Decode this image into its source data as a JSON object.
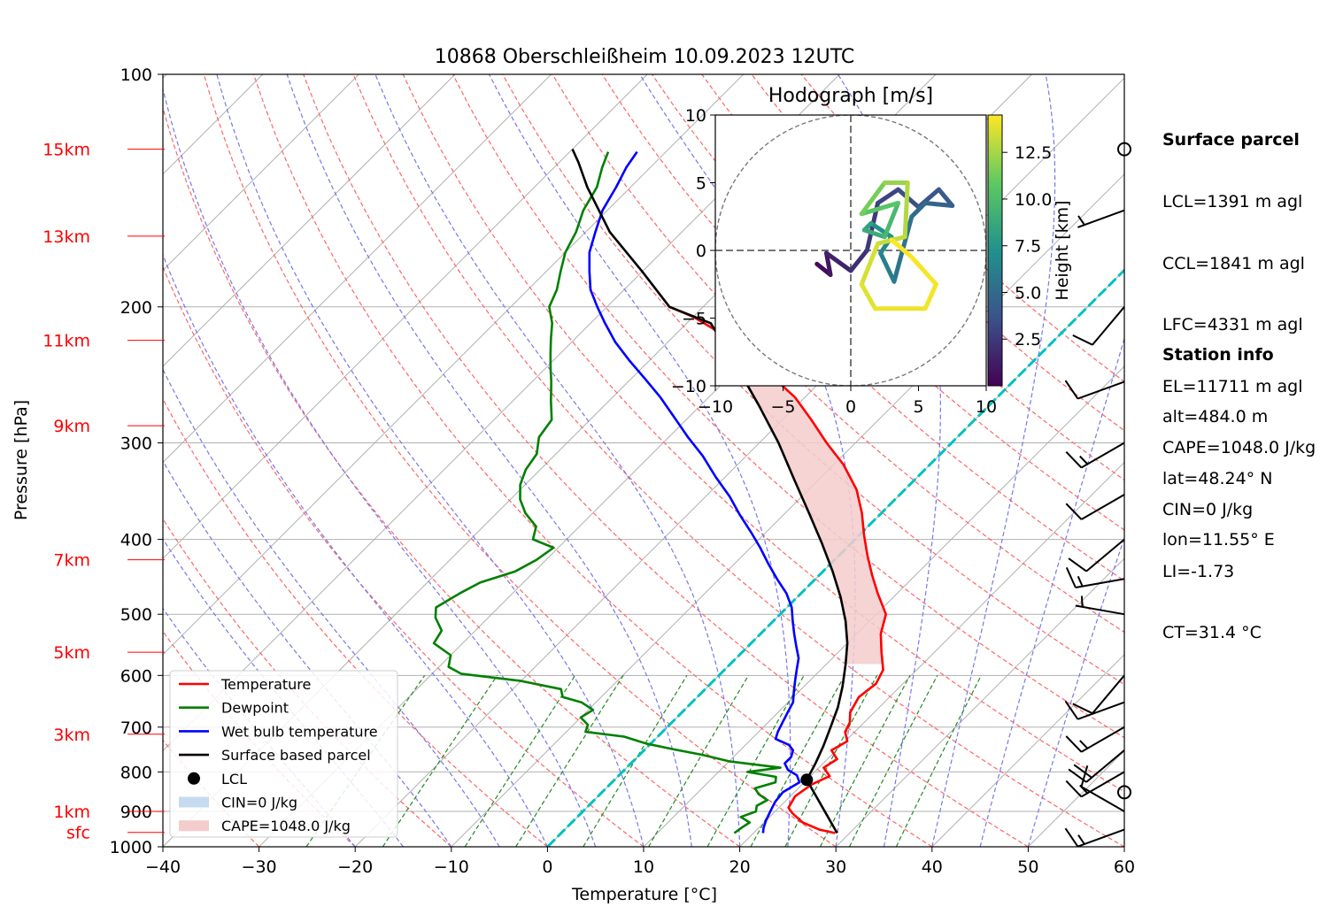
{
  "chart_data": {
    "type": "skew-t log-p sounding",
    "title": "10868 Oberschleißheim 10.09.2023 12UTC",
    "xlabel": "Temperature [°C]",
    "ylabel": "Pressure [hPa]",
    "xlim": [
      -40,
      60
    ],
    "ylim": [
      1000,
      100
    ],
    "y_scale": "log",
    "grid": true,
    "x_ticks": [
      "−40",
      "−30",
      "−20",
      "−10",
      "0",
      "10",
      "20",
      "30",
      "40",
      "50",
      "60"
    ],
    "y_ticks": [
      "100",
      "200",
      "300",
      "400",
      "500",
      "600",
      "700",
      "800",
      "900",
      "1000"
    ],
    "height_labels": [
      {
        "label": "15km",
        "p": 125
      },
      {
        "label": "13km",
        "p": 162
      },
      {
        "label": "11km",
        "p": 221
      },
      {
        "label": "9km",
        "p": 285
      },
      {
        "label": "7km",
        "p": 425
      },
      {
        "label": "5km",
        "p": 560
      },
      {
        "label": "3km",
        "p": 715
      },
      {
        "label": "1km",
        "p": 900
      },
      {
        "label": "sfc",
        "p": 958
      }
    ],
    "legend": {
      "placement": "lower-left",
      "entries": [
        {
          "label": "Temperature",
          "color": "#ff0000",
          "kind": "line"
        },
        {
          "label": "Dewpoint",
          "color": "#008000",
          "kind": "line"
        },
        {
          "label": "Wet bulb temperature",
          "color": "#0000ff",
          "kind": "line"
        },
        {
          "label": "Surface based parcel",
          "color": "#000000",
          "kind": "line"
        },
        {
          "label": "LCL",
          "color": "#000000",
          "kind": "dot"
        },
        {
          "label": "CIN=0 J/kg",
          "color": "#c6dbef",
          "kind": "patch"
        },
        {
          "label": "CAPE=1048.0 J/kg",
          "color": "#f4cccc",
          "kind": "patch"
        }
      ]
    },
    "series": [
      {
        "name": "Temperature",
        "color": "#ff0000",
        "points": [
          [
            28.5,
            960
          ],
          [
            26.5,
            950
          ],
          [
            24.0,
            930
          ],
          [
            22.0,
            905
          ],
          [
            21.0,
            890
          ],
          [
            20.5,
            860
          ],
          [
            21.0,
            830
          ],
          [
            22.0,
            810
          ],
          [
            20.5,
            790
          ],
          [
            21.0,
            770
          ],
          [
            19.5,
            750
          ],
          [
            20.2,
            730
          ],
          [
            19.0,
            710
          ],
          [
            18.5,
            690
          ],
          [
            17.5,
            670
          ],
          [
            16.8,
            640
          ],
          [
            17.2,
            615
          ],
          [
            16.5,
            590
          ],
          [
            14.5,
            560
          ],
          [
            12.5,
            530
          ],
          [
            11.0,
            500
          ],
          [
            8.0,
            470
          ],
          [
            5.5,
            445
          ],
          [
            3.0,
            420
          ],
          [
            0.5,
            395
          ],
          [
            -2.0,
            370
          ],
          [
            -5.0,
            345
          ],
          [
            -9.0,
            320
          ],
          [
            -13.0,
            300
          ],
          [
            -17.0,
            280
          ],
          [
            -21.0,
            262
          ],
          [
            -25.0,
            248
          ],
          [
            -29.0,
            235
          ],
          [
            -32.5,
            225
          ],
          [
            -36.0,
            215
          ],
          [
            -40.0,
            206
          ],
          [
            -43.5,
            200
          ]
        ]
      },
      {
        "name": "Dewpoint",
        "color": "#008000",
        "points": [
          [
            18.0,
            960
          ],
          [
            18.2,
            945
          ],
          [
            18.5,
            930
          ],
          [
            17.0,
            915
          ],
          [
            18.0,
            900
          ],
          [
            17.5,
            885
          ],
          [
            18.0,
            870
          ],
          [
            16.5,
            855
          ],
          [
            15.5,
            840
          ],
          [
            17.0,
            825
          ],
          [
            16.5,
            812
          ],
          [
            13.0,
            800
          ],
          [
            16.0,
            790
          ],
          [
            10.0,
            775
          ],
          [
            6.5,
            760
          ],
          [
            3.0,
            748
          ],
          [
            -0.5,
            735
          ],
          [
            -3.5,
            720
          ],
          [
            -8.0,
            710
          ],
          [
            -8.5,
            695
          ],
          [
            -10.0,
            680
          ],
          [
            -9.5,
            665
          ],
          [
            -11.5,
            650
          ],
          [
            -14.0,
            640
          ],
          [
            -15.0,
            625
          ],
          [
            -20.0,
            610
          ],
          [
            -27.0,
            597
          ],
          [
            -29.0,
            585
          ],
          [
            -30.0,
            565
          ],
          [
            -33.0,
            545
          ],
          [
            -33.5,
            525
          ],
          [
            -35.5,
            505
          ],
          [
            -36.5,
            490
          ],
          [
            -35.5,
            470
          ],
          [
            -34.5,
            455
          ],
          [
            -32.0,
            440
          ],
          [
            -31.0,
            425
          ],
          [
            -30.5,
            410
          ],
          [
            -33.5,
            400
          ],
          [
            -34.5,
            385
          ],
          [
            -37.0,
            370
          ],
          [
            -39.0,
            355
          ],
          [
            -40.5,
            340
          ],
          [
            -41.5,
            325
          ],
          [
            -42.0,
            310
          ],
          [
            -43.5,
            295
          ],
          [
            -44.0,
            280
          ],
          [
            -46.0,
            265
          ],
          [
            -48.0,
            250
          ],
          [
            -49.5,
            240
          ],
          [
            -51.0,
            230
          ],
          [
            -52.5,
            220
          ],
          [
            -54.0,
            210
          ],
          [
            -56.0,
            200
          ],
          [
            -57.0,
            190
          ],
          [
            -58.5,
            180
          ],
          [
            -60.0,
            170
          ],
          [
            -61.0,
            160
          ],
          [
            -62.5,
            150
          ],
          [
            -63.5,
            140
          ],
          [
            -65.0,
            132
          ],
          [
            -66.0,
            126
          ]
        ]
      },
      {
        "name": "Wet bulb temperature",
        "color": "#0000ff",
        "points": [
          [
            21.0,
            960
          ],
          [
            20.5,
            945
          ],
          [
            20.0,
            925
          ],
          [
            19.5,
            900
          ],
          [
            19.0,
            875
          ],
          [
            18.8,
            850
          ],
          [
            19.5,
            825
          ],
          [
            18.5,
            808
          ],
          [
            17.0,
            795
          ],
          [
            16.0,
            780
          ],
          [
            16.0,
            765
          ],
          [
            15.5,
            750
          ],
          [
            14.5,
            738
          ],
          [
            12.5,
            725
          ],
          [
            12.0,
            710
          ],
          [
            11.5,
            690
          ],
          [
            11.0,
            670
          ],
          [
            10.5,
            650
          ],
          [
            9.5,
            630
          ],
          [
            8.5,
            610
          ],
          [
            7.5,
            590
          ],
          [
            6.5,
            570
          ],
          [
            5.0,
            550
          ],
          [
            3.5,
            530
          ],
          [
            2.0,
            510
          ],
          [
            0.5,
            490
          ],
          [
            -1.5,
            470
          ],
          [
            -4.0,
            450
          ],
          [
            -6.5,
            430
          ],
          [
            -9.0,
            410
          ],
          [
            -11.5,
            392
          ],
          [
            -14.5,
            372
          ],
          [
            -17.5,
            352
          ],
          [
            -21.0,
            332
          ],
          [
            -24.5,
            312
          ],
          [
            -28.0,
            295
          ],
          [
            -31.5,
            278
          ],
          [
            -35.0,
            262
          ],
          [
            -38.5,
            248
          ],
          [
            -42.0,
            235
          ],
          [
            -45.5,
            222
          ],
          [
            -48.5,
            210
          ],
          [
            -51.0,
            200
          ],
          [
            -53.5,
            190
          ],
          [
            -55.5,
            180
          ],
          [
            -57.5,
            170
          ],
          [
            -59.0,
            160
          ],
          [
            -60.5,
            150
          ],
          [
            -61.5,
            140
          ],
          [
            -62.5,
            132
          ],
          [
            -63.0,
            126
          ]
        ]
      },
      {
        "name": "Surface based parcel",
        "color": "#000000",
        "points": [
          [
            28.7,
            960
          ],
          [
            20.0,
            819
          ],
          [
            19.2,
            780
          ],
          [
            18.2,
            740
          ],
          [
            17.0,
            700
          ],
          [
            15.7,
            660
          ],
          [
            14.0,
            620
          ],
          [
            12.0,
            580
          ],
          [
            10.0,
            545
          ],
          [
            7.5,
            510
          ],
          [
            4.5,
            475
          ],
          [
            1.0,
            440
          ],
          [
            -3.0,
            405
          ],
          [
            -7.5,
            370
          ],
          [
            -12.5,
            335
          ],
          [
            -18.0,
            300
          ],
          [
            -24.0,
            268
          ],
          [
            -30.5,
            238
          ],
          [
            -37.5,
            210
          ],
          [
            -43.5,
            200
          ],
          [
            -50.0,
            180
          ],
          [
            -57.5,
            160
          ],
          [
            -64.5,
            140
          ],
          [
            -68.0,
            130
          ],
          [
            -70.0,
            125
          ]
        ]
      }
    ],
    "lcl": {
      "t": 20.0,
      "p": 819
    },
    "cape_fill": {
      "between": [
        "Surface based parcel",
        "Temperature"
      ],
      "p_range": [
        580,
        200
      ]
    },
    "reference_lines": {
      "dry_adiabats": "red dashed",
      "moist_adiabats": "blue dashed",
      "mixing_ratio": "green dashed",
      "isotherms": "gray solid (skewed)",
      "parcel_isotherm": "cyan dashed"
    },
    "wind_barbs": [
      {
        "p": 950,
        "dir": 250,
        "speed_kt": 15
      },
      {
        "p": 900,
        "dir": 300,
        "speed_kt": 10
      },
      {
        "p": 850,
        "dir": 0,
        "speed_kt": 0
      },
      {
        "p": 800,
        "dir": 240,
        "speed_kt": 15
      },
      {
        "p": 750,
        "dir": 230,
        "speed_kt": 20
      },
      {
        "p": 700,
        "dir": 240,
        "speed_kt": 15
      },
      {
        "p": 650,
        "dir": 250,
        "speed_kt": 10
      },
      {
        "p": 600,
        "dir": 220,
        "speed_kt": 10
      },
      {
        "p": 500,
        "dir": 280,
        "speed_kt": 5
      },
      {
        "p": 450,
        "dir": 260,
        "speed_kt": 15
      },
      {
        "p": 400,
        "dir": 230,
        "speed_kt": 10
      },
      {
        "p": 350,
        "dir": 240,
        "speed_kt": 10
      },
      {
        "p": 300,
        "dir": 240,
        "speed_kt": 15
      },
      {
        "p": 250,
        "dir": 250,
        "speed_kt": 10
      },
      {
        "p": 200,
        "dir": 220,
        "speed_kt": 10
      },
      {
        "p": 150,
        "dir": 250,
        "speed_kt": 5
      },
      {
        "p": 125,
        "dir": 0,
        "speed_kt": 0
      }
    ],
    "hodograph": {
      "title": "Hodograph [m/s]",
      "xlim": [
        -10,
        10
      ],
      "ylim": [
        -10,
        10
      ],
      "x_ticks": [
        "−10",
        "−5",
        "0",
        "5",
        "10"
      ],
      "y_ticks": [
        "10",
        "5",
        "0",
        "−5",
        "−10"
      ],
      "colorbar_label": "Height [km]",
      "colorbar_ticks": [
        "12.5",
        "10.0",
        "7.5",
        "5.0",
        "2.5"
      ],
      "colorbar_range": [
        0,
        14.5
      ],
      "points": [
        {
          "u": -2.5,
          "v": -1.0,
          "h": 0.3
        },
        {
          "u": -1.5,
          "v": -1.8,
          "h": 0.8
        },
        {
          "u": -1.8,
          "v": -0.2,
          "h": 1.2
        },
        {
          "u": 0.0,
          "v": -1.5,
          "h": 1.8
        },
        {
          "u": 1.2,
          "v": 0.0,
          "h": 2.3
        },
        {
          "u": 2.0,
          "v": 3.5,
          "h": 2.8
        },
        {
          "u": 3.5,
          "v": 4.5,
          "h": 3.2
        },
        {
          "u": 5.0,
          "v": 3.2,
          "h": 3.7
        },
        {
          "u": 6.5,
          "v": 4.5,
          "h": 4.0
        },
        {
          "u": 7.5,
          "v": 3.3,
          "h": 4.4
        },
        {
          "u": 5.5,
          "v": 3.5,
          "h": 4.8
        },
        {
          "u": 4.5,
          "v": 2.5,
          "h": 5.2
        },
        {
          "u": 3.2,
          "v": -2.3,
          "h": 5.8
        },
        {
          "u": 2.2,
          "v": -0.2,
          "h": 6.5
        },
        {
          "u": 3.0,
          "v": 1.0,
          "h": 7.0
        },
        {
          "u": 1.5,
          "v": 2.0,
          "h": 7.8
        },
        {
          "u": 1.0,
          "v": 1.5,
          "h": 8.5
        },
        {
          "u": 2.5,
          "v": 1.0,
          "h": 9.3
        },
        {
          "u": 3.5,
          "v": 3.5,
          "h": 10.2
        },
        {
          "u": 0.8,
          "v": 2.7,
          "h": 11.0
        },
        {
          "u": 2.5,
          "v": 5.0,
          "h": 11.8
        },
        {
          "u": 4.2,
          "v": 5.0,
          "h": 12.5
        },
        {
          "u": 4.0,
          "v": 1.0,
          "h": 13.0
        },
        {
          "u": 2.0,
          "v": 0.5,
          "h": 13.4
        },
        {
          "u": 0.8,
          "v": -2.5,
          "h": 13.7
        },
        {
          "u": 1.8,
          "v": -4.3,
          "h": 14.0
        },
        {
          "u": 5.5,
          "v": -4.3,
          "h": 14.2
        },
        {
          "u": 6.3,
          "v": -2.5,
          "h": 14.3
        },
        {
          "u": 4.5,
          "v": -0.5,
          "h": 14.4
        },
        {
          "u": 3.0,
          "v": 0.8,
          "h": 14.5
        }
      ]
    }
  },
  "surface_parcel": {
    "heading": "Surface parcel",
    "lines": [
      "LCL=1391 m agl",
      "CCL=1841 m agl",
      "LFC=4331 m agl",
      "EL=11711 m agl",
      "CAPE=1048.0 J/kg",
      "CIN=0 J/kg",
      "LI=-1.73",
      "CT=31.4 °C"
    ]
  },
  "station_info": {
    "heading": "Station info",
    "lines": [
      "alt=484.0 m",
      "lat=48.24° N",
      "lon=11.55° E"
    ]
  }
}
